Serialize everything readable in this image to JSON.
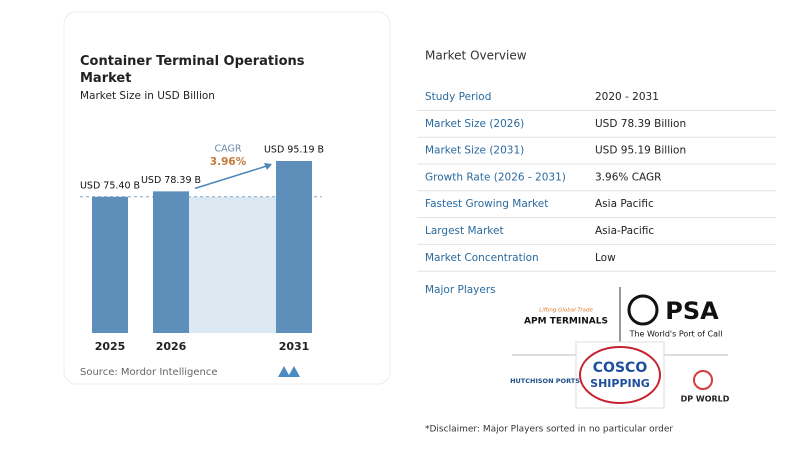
{
  "chart_data": {
    "type": "bar",
    "title": "Container Terminal Operations Market",
    "subtitle": "Market Size in USD Billion",
    "categories": [
      "2025",
      "2026",
      "2031"
    ],
    "values": [
      75.4,
      78.39,
      95.19
    ],
    "value_labels": [
      "USD 75.40 B",
      "USD 78.39 B",
      "USD 95.19 B"
    ],
    "color": "#5d8fba",
    "annotation": {
      "label": "CAGR",
      "value": "3.96%"
    },
    "source": "Source:  Mordor Intelligence"
  },
  "market_overview": {
    "title": "Market Overview",
    "rows": [
      [
        "Study Period",
        "2020 - 2031"
      ],
      [
        "Market Size (2026)",
        "USD 78.39 Billion"
      ],
      [
        "Market Size (2031)",
        "USD 95.19 Billion"
      ],
      [
        "Growth Rate (2026 - 2031)",
        "3.96% CAGR"
      ],
      [
        "Fastest Growing Market",
        "Asia Pacific"
      ],
      [
        "Largest Market",
        "Asia-Pacific"
      ],
      [
        "Market Concentration",
        "Low"
      ]
    ],
    "players_title": "Major Players",
    "players": {
      "apm": "APM TERMINALS",
      "apm_tagline": "Lifting Global Trade",
      "psa": "PSA",
      "psa_tagline": "The World's Port of Call",
      "hutchison": "HUTCHISON PORTS",
      "cosco": "COSCO",
      "cosco_sub": "SHIPPING",
      "dp": "DP WORLD"
    },
    "disclaimer": "*Disclaimer: Major Players sorted in no particular order"
  }
}
